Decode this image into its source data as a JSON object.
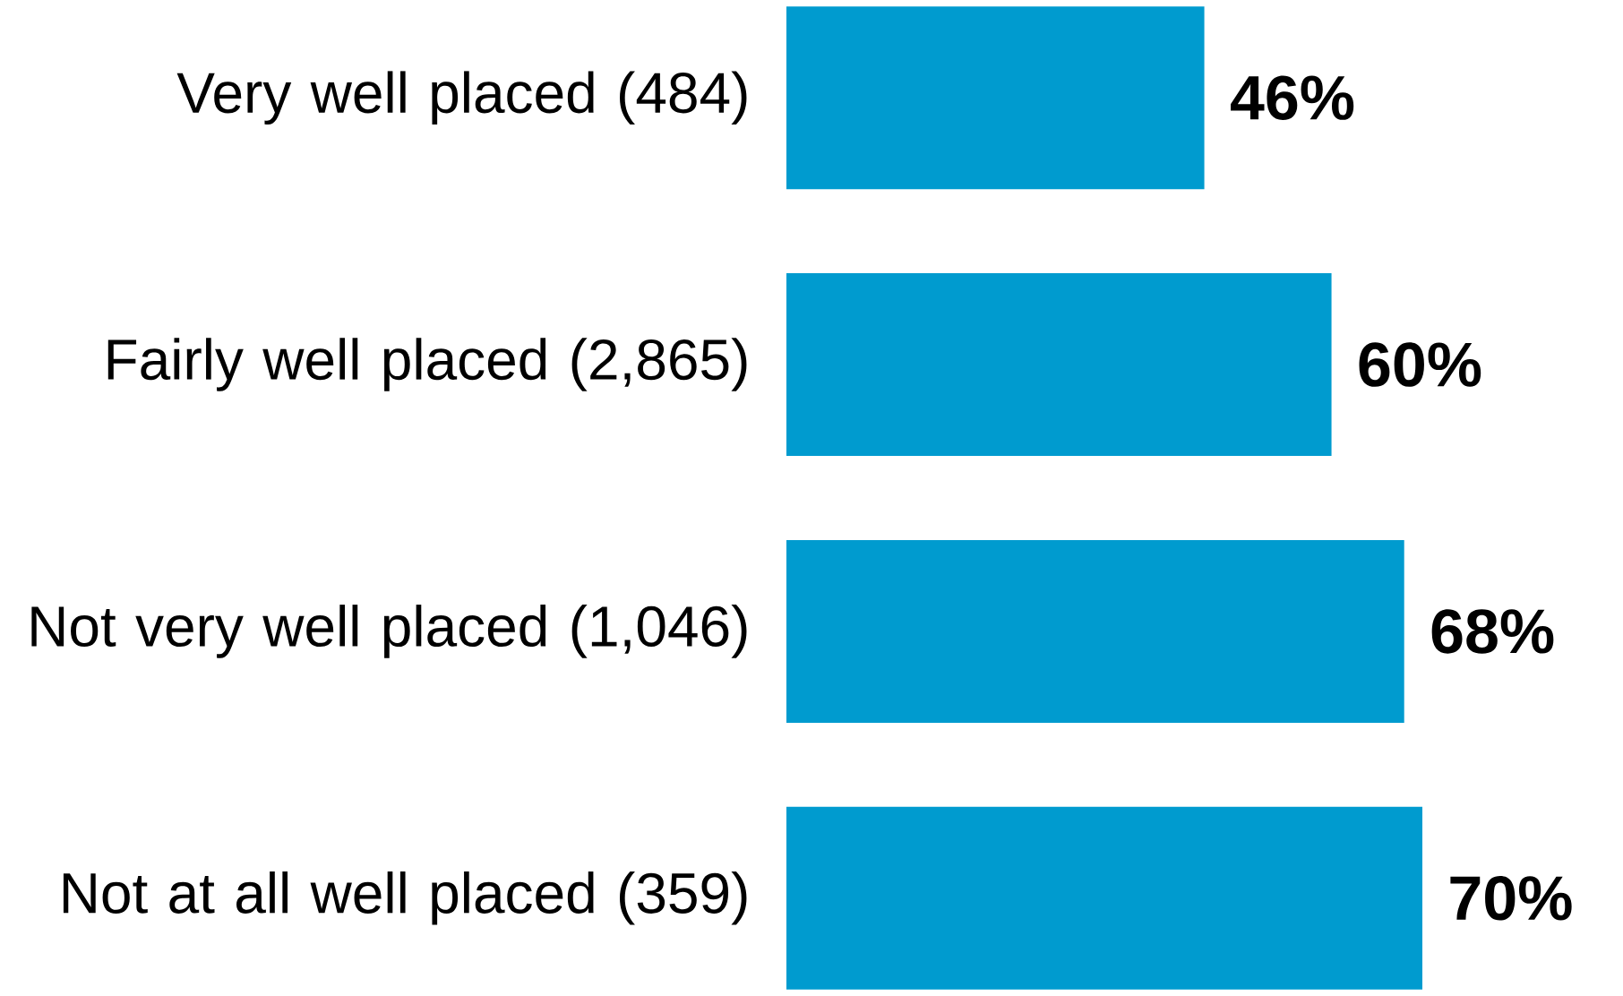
{
  "chart_data": {
    "type": "bar",
    "orientation": "horizontal",
    "categories": [
      "Very well placed (484)",
      "Fairly well placed (2,865)",
      "Not very well placed (1,046)",
      "Not at all well placed (359)"
    ],
    "values": [
      46,
      60,
      68,
      70
    ],
    "color": "#009bcf",
    "value_labels": [
      "46%",
      "60%",
      "68%",
      "70%"
    ]
  }
}
